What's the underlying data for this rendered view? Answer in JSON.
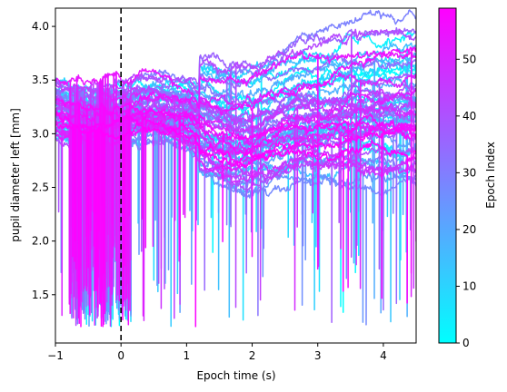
{
  "chart_data": {
    "type": "line",
    "title": "",
    "xlabel": "Epoch time (s)",
    "ylabel": "pupil diameter left [mm]",
    "xlim": [
      -1,
      4.5
    ],
    "ylim": [
      1.05,
      4.17
    ],
    "xticks": [
      -1,
      0,
      1,
      2,
      3,
      4
    ],
    "xtick_labels": [
      "−1",
      "0",
      "1",
      "2",
      "3",
      "4"
    ],
    "yticks": [
      1.5,
      2.0,
      2.5,
      3.0,
      3.5,
      4.0
    ],
    "ytick_labels": [
      "1.5",
      "2.0",
      "2.5",
      "3.0",
      "3.5",
      "4.0"
    ],
    "grid": false,
    "event_line": {
      "x": 0,
      "style": "dashed",
      "color": "#000000"
    },
    "colormap": {
      "name": "cool",
      "start": "#00ffff",
      "end": "#ff00ff"
    },
    "colorbar": {
      "label": "Epoch Index",
      "range": [
        0,
        59
      ],
      "ticks": [
        0,
        10,
        20,
        30,
        40,
        50
      ],
      "tick_labels": [
        "0",
        "10",
        "20",
        "30",
        "40",
        "50"
      ]
    },
    "n_epochs": 60,
    "x": [
      -1.0,
      -0.75,
      -0.5,
      -0.25,
      0.0,
      0.25,
      0.5,
      0.75,
      1.0,
      1.25,
      1.5,
      1.75,
      2.0,
      2.25,
      2.5,
      2.75,
      3.0,
      3.25,
      3.5,
      3.75,
      4.0,
      4.25,
      4.5
    ],
    "mean_trace": [
      3.2,
      3.15,
      3.1,
      3.1,
      3.15,
      3.2,
      3.2,
      3.18,
      3.15,
      3.05,
      3.0,
      2.95,
      2.95,
      3.0,
      3.05,
      3.1,
      3.1,
      3.12,
      3.15,
      3.15,
      3.15,
      3.15,
      3.15
    ],
    "epoch_offsets_range": [
      -0.35,
      0.55
    ],
    "dropout_min": 1.2
  }
}
